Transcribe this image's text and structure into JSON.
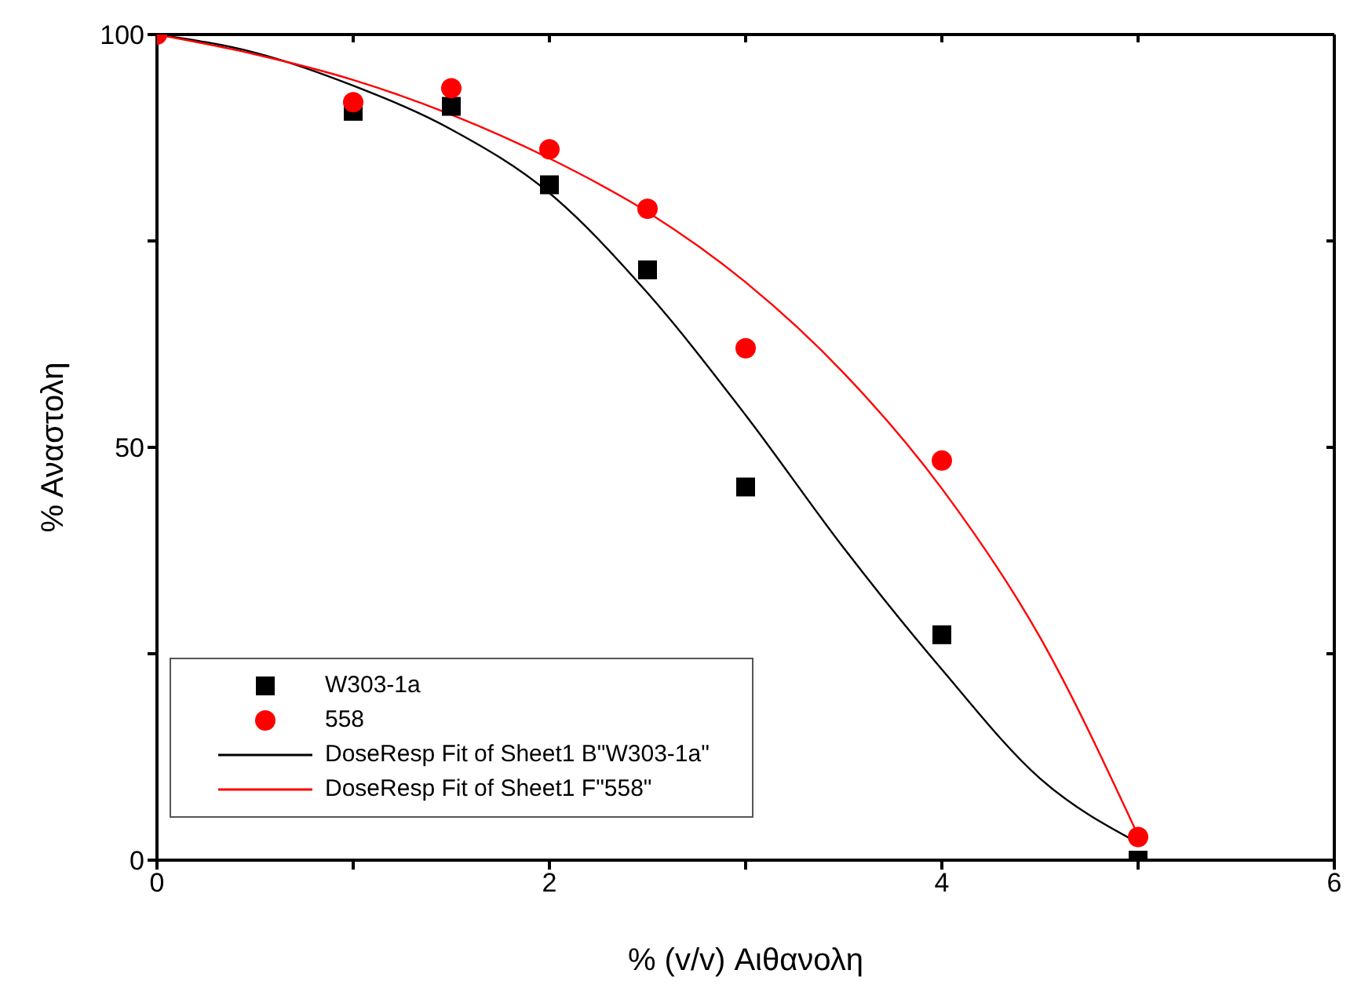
{
  "chart_data": {
    "type": "scatter",
    "xlabel": "% (v/v) Αιθανολη",
    "ylabel": "% Αναστολη",
    "xlim": [
      0,
      6
    ],
    "ylim": [
      0,
      100
    ],
    "xticks": [
      0,
      {
        "value": 1,
        "label": null
      },
      2,
      {
        "value": 3,
        "label": null
      },
      4,
      {
        "value": 5,
        "label": null
      },
      6
    ],
    "yticks": [
      0,
      {
        "value": 25,
        "label": null
      },
      50,
      {
        "value": 75,
        "label": null
      },
      100
    ],
    "legend": "bottom left",
    "series": [
      {
        "name": "W303-1a",
        "marker": "square",
        "color": "#000000",
        "x": [
          1,
          1.5,
          2,
          2.5,
          3,
          4,
          5
        ],
        "values": [
          90.7,
          91.3,
          81.8,
          71.5,
          45.2,
          27.3,
          0
        ]
      },
      {
        "name": "558",
        "marker": "circle",
        "color": "#ff0000",
        "x": [
          0,
          1,
          1.5,
          2,
          2.5,
          3,
          4,
          5
        ],
        "values": [
          100,
          91.8,
          93.5,
          86.1,
          78.9,
          62.0,
          48.4,
          2.8
        ]
      },
      {
        "name": "DoseResp Fit of Sheet1 B\"W303-1a\"",
        "type": "line",
        "marker": "none",
        "line_style": "solid",
        "color": "#000000",
        "x": [
          0,
          0.5,
          1,
          1.5,
          2,
          2.5,
          3,
          3.5,
          4,
          4.5,
          5
        ],
        "values": [
          100,
          97.8,
          93.8,
          88.5,
          80.8,
          68.7,
          53.9,
          37.8,
          23.1,
          9.9,
          2.1
        ]
      },
      {
        "name": "DoseResp Fit of Sheet1 F\"558\"",
        "type": "line",
        "marker": "none",
        "line_style": "solid",
        "color": "#ff0000",
        "x": [
          0,
          0.5,
          1,
          1.5,
          2,
          2.5,
          3,
          3.5,
          4,
          4.5,
          5
        ],
        "values": [
          100,
          97.6,
          94.5,
          90.3,
          85,
          78.5,
          70,
          59,
          45,
          27,
          3
        ]
      }
    ]
  }
}
